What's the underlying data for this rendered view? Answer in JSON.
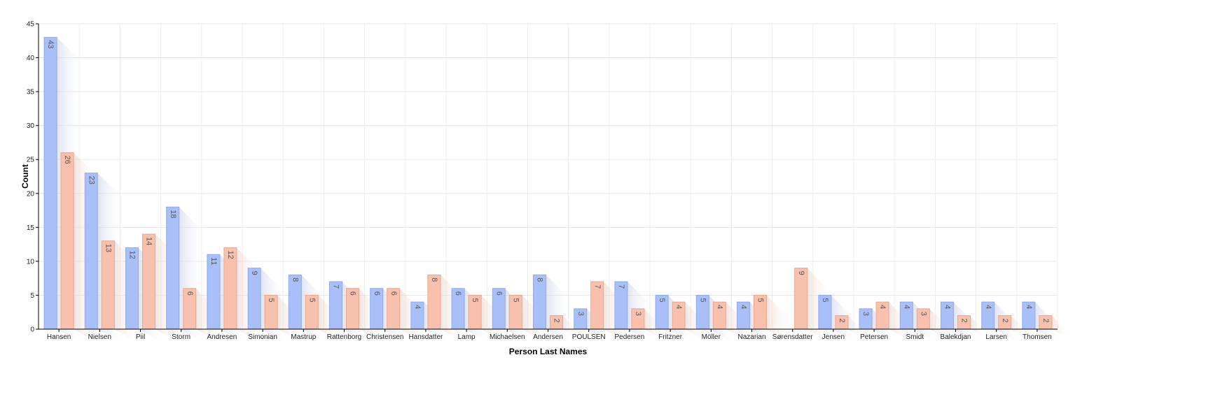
{
  "chart_data": {
    "type": "bar",
    "title": "",
    "xlabel": "Person Last Names",
    "ylabel": "Count",
    "ylim": [
      0,
      45
    ],
    "yticks": [
      0,
      5,
      10,
      15,
      20,
      25,
      30,
      35,
      40,
      45
    ],
    "grid": true,
    "legend": "none",
    "categories": [
      "Hansen",
      "Nielsen",
      "Piil",
      "Storm",
      "Andresen",
      "Simonian",
      "Mastrup",
      "Rattenborg",
      "Christensen",
      "Hansdatter",
      "Lamp",
      "Michaelsen",
      "Andersen",
      "POULSEN",
      "Pedersen",
      "Fritzner",
      "Möller",
      "Nazarian",
      "Sørensdatter",
      "Jensen",
      "Petersen",
      "Smidt",
      "Balekdjan",
      "Larsen",
      "Thomsen"
    ],
    "series": [
      {
        "color": "#a9bff7",
        "edge": "#8fa9ee",
        "values": [
          43,
          23,
          12,
          18,
          11,
          9,
          8,
          7,
          6,
          4,
          6,
          6,
          8,
          3,
          7,
          5,
          5,
          4,
          null,
          5,
          3,
          4,
          4,
          4,
          4
        ]
      },
      {
        "color": "#f8c1ad",
        "edge": "#eaa68f",
        "values": [
          26,
          13,
          14,
          6,
          12,
          5,
          5,
          6,
          6,
          8,
          5,
          5,
          2,
          7,
          3,
          4,
          4,
          5,
          9,
          2,
          4,
          3,
          2,
          2,
          2
        ]
      }
    ]
  }
}
